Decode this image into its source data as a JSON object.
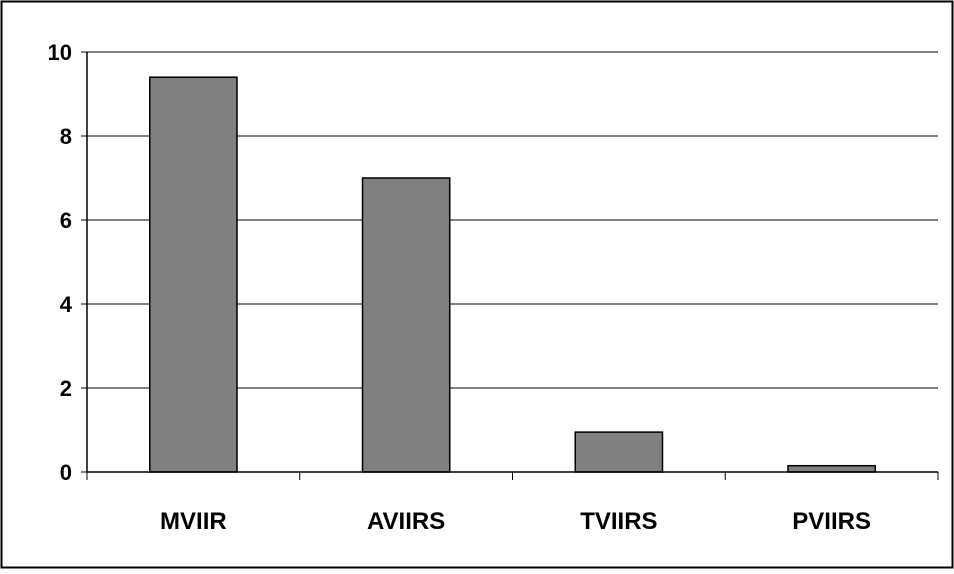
{
  "chart_data": {
    "type": "bar",
    "title": "",
    "xlabel": "",
    "ylabel": "",
    "categories": [
      "MVIIR",
      "AVIIRS",
      "TVIIRS",
      "PVIIRS"
    ],
    "values": [
      9.4,
      7.0,
      0.95,
      0.15
    ],
    "ylim": [
      0,
      10
    ],
    "yticks": [
      "0",
      "2",
      "4",
      "6",
      "8",
      "10"
    ],
    "grid": true,
    "legend": "none",
    "colors": {
      "bar_fill": "#808080",
      "bar_stroke": "#000000",
      "grid": "#000000",
      "axis": "#000000",
      "background": "#ffffff"
    }
  }
}
